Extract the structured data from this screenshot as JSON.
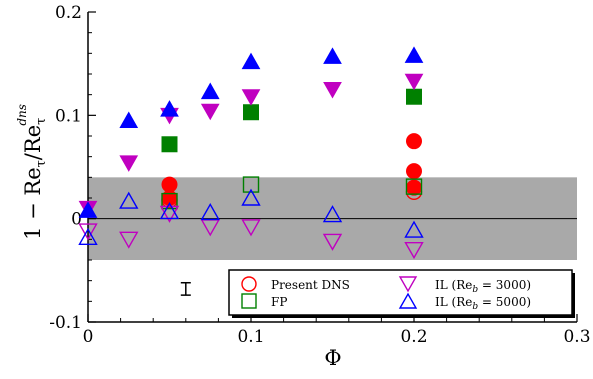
{
  "chart_data": {
    "type": "scatter",
    "title": "",
    "xlabel": "Φ",
    "ylabel_parts": {
      "a": "1 − Re",
      "sub1": "τ",
      "b": "/Re",
      "sub2": "τ",
      "sup2": "dns"
    },
    "xlim": [
      0,
      0.3
    ],
    "ylim": [
      -0.1,
      0.2
    ],
    "x_ticks": [
      0,
      0.1,
      0.2,
      0.3
    ],
    "x_tick_labels": [
      "0",
      "0.1",
      "0.2",
      "0.3"
    ],
    "y_ticks": [
      -0.1,
      0,
      0.1,
      0.2
    ],
    "y_tick_labels": [
      "-0.1",
      "0",
      "0.1",
      "0.2"
    ],
    "grid": false,
    "legend_position": "bottom-right",
    "shaded_band": {
      "y_range": [
        -0.04,
        0.04
      ],
      "color": "#a9a9a9"
    },
    "zero_line": 0,
    "error_bar": {
      "x": 0.06,
      "y": -0.068,
      "half_height": 0.006
    },
    "series": [
      {
        "name": "Present DNS",
        "marker": "circle",
        "color": "#ff0000",
        "filled": [
          [
            0.05,
            0.033
          ],
          [
            0.05,
            0.02
          ],
          [
            0.2,
            0.075
          ],
          [
            0.2,
            0.046
          ],
          [
            0.2,
            0.03
          ]
        ],
        "open": [
          [
            0.05,
            0.018
          ],
          [
            0.2,
            0.026
          ]
        ]
      },
      {
        "name": "FP",
        "marker": "square",
        "color": "#008000",
        "filled": [
          [
            0.05,
            0.072
          ],
          [
            0.1,
            0.103
          ],
          [
            0.2,
            0.118
          ]
        ],
        "open": [
          [
            0.05,
            0.017
          ],
          [
            0.1,
            0.033
          ],
          [
            0.2,
            0.031
          ]
        ]
      },
      {
        "name": "IL (Re",
        "name_sub": "b",
        "name_rest": " = 3000)",
        "marker": "triangle-down",
        "color": "#c000c0",
        "filled": [
          [
            0,
            0.01
          ],
          [
            0.025,
            0.054
          ],
          [
            0.05,
            0.1
          ],
          [
            0.075,
            0.104
          ],
          [
            0.1,
            0.118
          ],
          [
            0.15,
            0.125
          ],
          [
            0.2,
            0.133
          ]
        ],
        "open": [
          [
            0,
            -0.012
          ],
          [
            0.025,
            -0.02
          ],
          [
            0.05,
            0.005
          ],
          [
            0.075,
            -0.008
          ],
          [
            0.1,
            -0.008
          ],
          [
            0.15,
            -0.022
          ],
          [
            0.2,
            -0.03
          ]
        ]
      },
      {
        "name": "IL (Re",
        "name_sub": "b",
        "name_rest": " = 5000)",
        "marker": "triangle-up",
        "color": "#0000ff",
        "filled": [
          [
            0,
            0.008
          ],
          [
            0.025,
            0.095
          ],
          [
            0.05,
            0.106
          ],
          [
            0.075,
            0.123
          ],
          [
            0.1,
            0.152
          ],
          [
            0.15,
            0.157
          ],
          [
            0.2,
            0.158
          ]
        ],
        "open": [
          [
            0,
            -0.018
          ],
          [
            0.025,
            0.017
          ],
          [
            0.05,
            0.007
          ],
          [
            0.075,
            0.006
          ],
          [
            0.1,
            0.02
          ],
          [
            0.15,
            0.004
          ],
          [
            0.2,
            -0.011
          ]
        ]
      }
    ]
  }
}
